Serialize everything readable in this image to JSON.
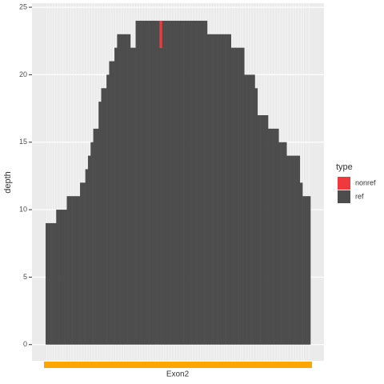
{
  "chart_data": {
    "type": "stacked_bar",
    "y_label": "depth",
    "annotation": "Exon2",
    "legend_title": "type",
    "categories": [
      null,
      null,
      null,
      null,
      null,
      null,
      null,
      null,
      null,
      null,
      null,
      null,
      null,
      null,
      null,
      null,
      null,
      null,
      null,
      null,
      null,
      null,
      null,
      null,
      null,
      null,
      null,
      null,
      null,
      null,
      null,
      null,
      null,
      null,
      null,
      null,
      null,
      null,
      null,
      null,
      null,
      null,
      null,
      null,
      null,
      null,
      null,
      null,
      null,
      null,
      null,
      null,
      null,
      null,
      null,
      null,
      null,
      null,
      null,
      null,
      null,
      null,
      null,
      null,
      null,
      null,
      null,
      null,
      null,
      null,
      null,
      null,
      null,
      null,
      null,
      null,
      null,
      null,
      null,
      null,
      null,
      null,
      null,
      null,
      null,
      null,
      null,
      null,
      null,
      null,
      null,
      null,
      null,
      null,
      null,
      null,
      null,
      null,
      null,
      null
    ],
    "series": [
      {
        "name": "nonref",
        "color": "#f0393c",
        "values": [
          0,
          0,
          0,
          0,
          0,
          0,
          0,
          0,
          0,
          0,
          0,
          0,
          0,
          0,
          0,
          0,
          0,
          0,
          0,
          0,
          0,
          0,
          0,
          0,
          0,
          0,
          0,
          0,
          0,
          0,
          0,
          0,
          0,
          0,
          0,
          0,
          0,
          0,
          0,
          0,
          0,
          0,
          0,
          2,
          0,
          0,
          0,
          0,
          0,
          0,
          0,
          0,
          0,
          0,
          0,
          0,
          0,
          0,
          0,
          0,
          0,
          0,
          0,
          0,
          0,
          0,
          0,
          0,
          0,
          0,
          0,
          0,
          0,
          0,
          0,
          0,
          0,
          0,
          0,
          0,
          0,
          0,
          0,
          0,
          0,
          0,
          0,
          0,
          0,
          0,
          0,
          0,
          0,
          0,
          0,
          0,
          0,
          0,
          0,
          0
        ]
      },
      {
        "name": "ref",
        "color": "#4d4d4d",
        "values": [
          9,
          9,
          9,
          9,
          10,
          10,
          10,
          10,
          11,
          11,
          11,
          11,
          11,
          12,
          12,
          13,
          14,
          15,
          16,
          16,
          18,
          19,
          19,
          20,
          21,
          21,
          22,
          23,
          23,
          23,
          23,
          23,
          22,
          22,
          24,
          24,
          24,
          24,
          24,
          24,
          24,
          24,
          24,
          22,
          24,
          24,
          24,
          24,
          24,
          24,
          24,
          24,
          24,
          24,
          24,
          24,
          24,
          24,
          24,
          24,
          24,
          23,
          23,
          23,
          23,
          23,
          23,
          23,
          23,
          23,
          22,
          22,
          22,
          22,
          22,
          20,
          20,
          20,
          20,
          19,
          17,
          17,
          17,
          17,
          16,
          16,
          16,
          16,
          15,
          15,
          15,
          14,
          14,
          14,
          14,
          14,
          12,
          11,
          11,
          11
        ]
      }
    ],
    "ylim": [
      -1.2,
      25.3
    ],
    "yticks": [
      0,
      5,
      10,
      15,
      20,
      25
    ],
    "grid": true
  }
}
